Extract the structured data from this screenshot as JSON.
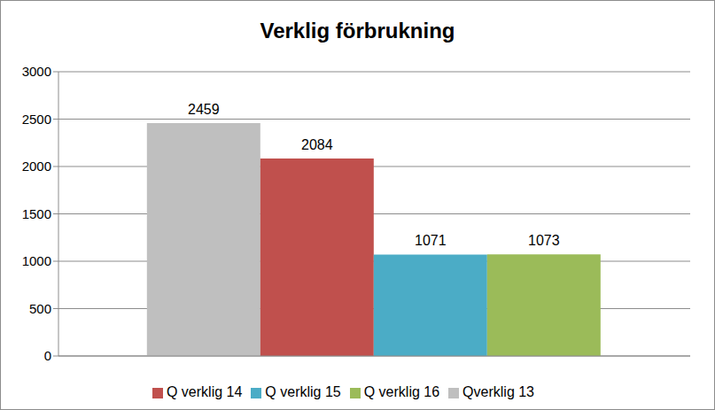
{
  "chart_data": {
    "type": "bar",
    "title": "Verklig förbrukning",
    "categories": [
      null
    ],
    "series": [
      {
        "name": "Qverklig 13",
        "color": "#bfbfbf",
        "values": [
          2459
        ]
      },
      {
        "name": "Q verklig 14",
        "color": "#c0504d",
        "values": [
          2084
        ]
      },
      {
        "name": "Q verklig 15",
        "color": "#4bacc6",
        "values": [
          1071
        ]
      },
      {
        "name": "Q verklig 16",
        "color": "#9bbb59",
        "values": [
          1073
        ]
      }
    ],
    "ylim": [
      0,
      3000
    ],
    "yticks": [
      0,
      500,
      1000,
      1500,
      2000,
      2500,
      3000
    ],
    "grid": true,
    "legend": "bottom",
    "data_labels": true
  }
}
